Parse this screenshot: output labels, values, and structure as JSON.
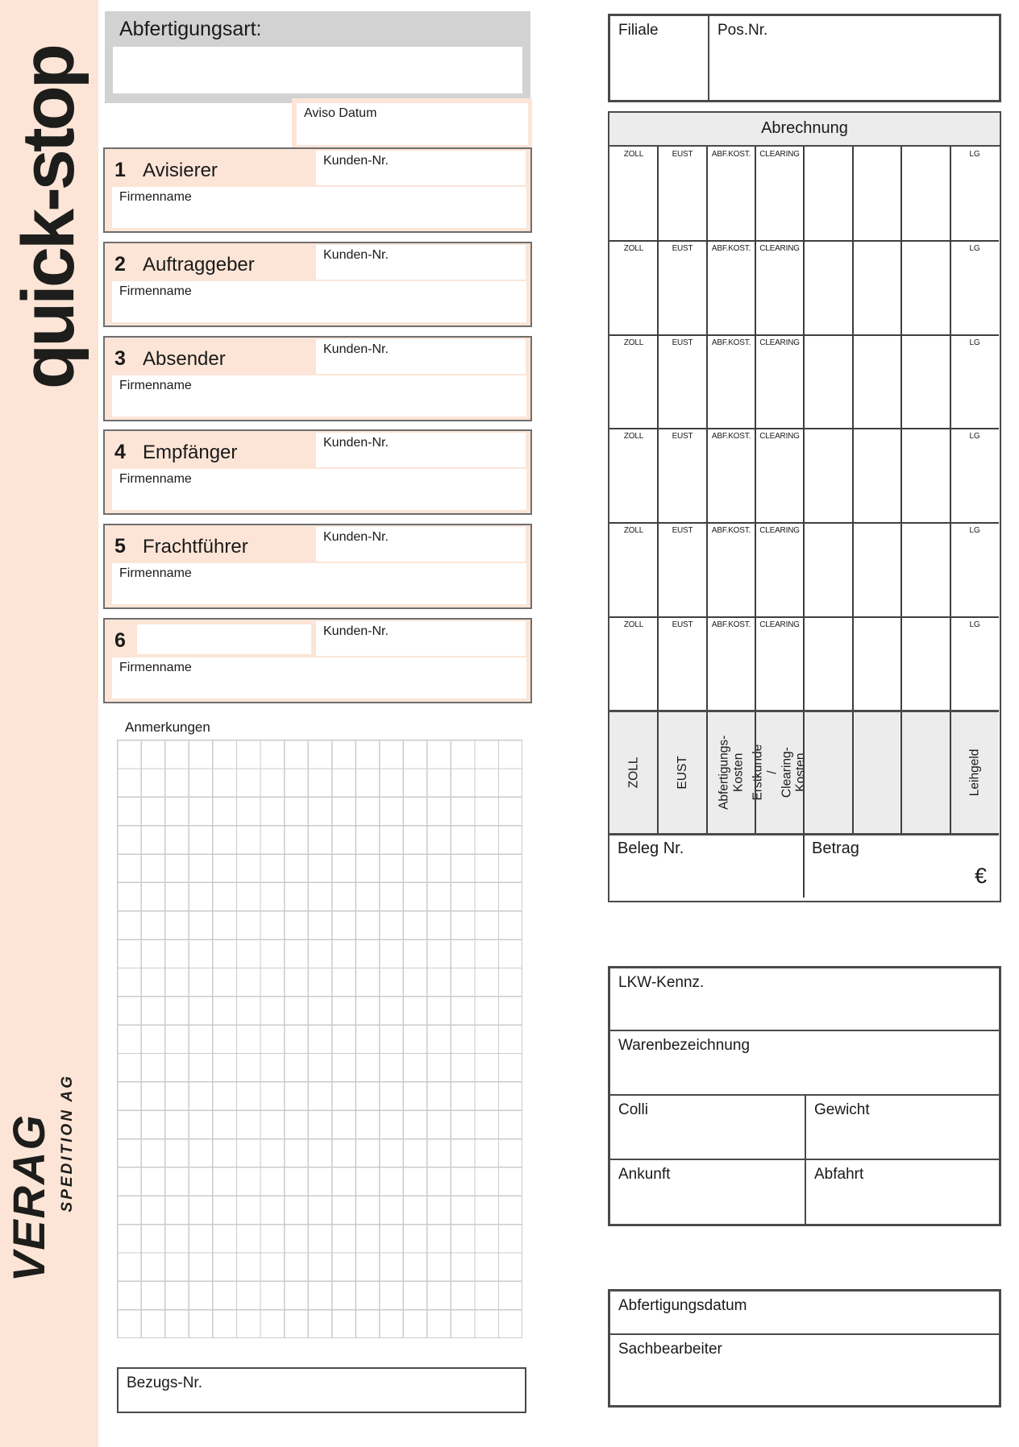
{
  "brand": {
    "logo": "quick-stop",
    "company": "VERAG",
    "company_sub": "SPEDITION AG"
  },
  "header": {
    "abfertigungsart_label": "Abfertigungsart:",
    "filiale_label": "Filiale",
    "posnr_label": "Pos.Nr."
  },
  "aviso_label": "Aviso Datum",
  "field_labels": {
    "kunden": "Kunden-Nr.",
    "firma": "Firmenname"
  },
  "sections": [
    {
      "num": "1",
      "title": "Avisierer"
    },
    {
      "num": "2",
      "title": "Auftraggeber"
    },
    {
      "num": "3",
      "title": "Absender"
    },
    {
      "num": "4",
      "title": "Empfänger"
    },
    {
      "num": "5",
      "title": "Frachtführer"
    },
    {
      "num": "6",
      "title": ""
    }
  ],
  "abrechnung": {
    "title": "Abrechnung",
    "col_labels": [
      "ZOLL",
      "EUST",
      "ABF.KOST.",
      "CLEARING",
      "",
      "",
      "",
      "LG"
    ],
    "row_count": 6,
    "rotated_labels": [
      "ZOLL",
      "EUST",
      "Abfertigungs-\nKosten",
      "Erstkunde /\nClearing-Kosten",
      "",
      "",
      "",
      "Leihgeld"
    ],
    "beleg_label": "Beleg Nr.",
    "betrag_label": "Betrag",
    "currency": "€"
  },
  "anmerkungen_label": "Anmerkungen",
  "transport": {
    "lkw_label": "LKW-Kennz.",
    "waren_label": "Warenbezeichnung",
    "colli_label": "Colli",
    "gewicht_label": "Gewicht",
    "ankunft_label": "Ankunft",
    "abfahrt_label": "Abfahrt"
  },
  "processing": {
    "abfertigungsdatum_label": "Abfertigungsdatum",
    "sachbearbeiter_label": "Sachbearbeiter"
  },
  "bezug_label": "Bezugs-Nr.",
  "colors": {
    "peach": "#fce5d6",
    "panel_gray": "#d2d2d2",
    "table_gray": "#ececec",
    "border_dark": "#4a4a4a",
    "grid_line": "#cbcbcb",
    "text": "#1a1a1a"
  }
}
